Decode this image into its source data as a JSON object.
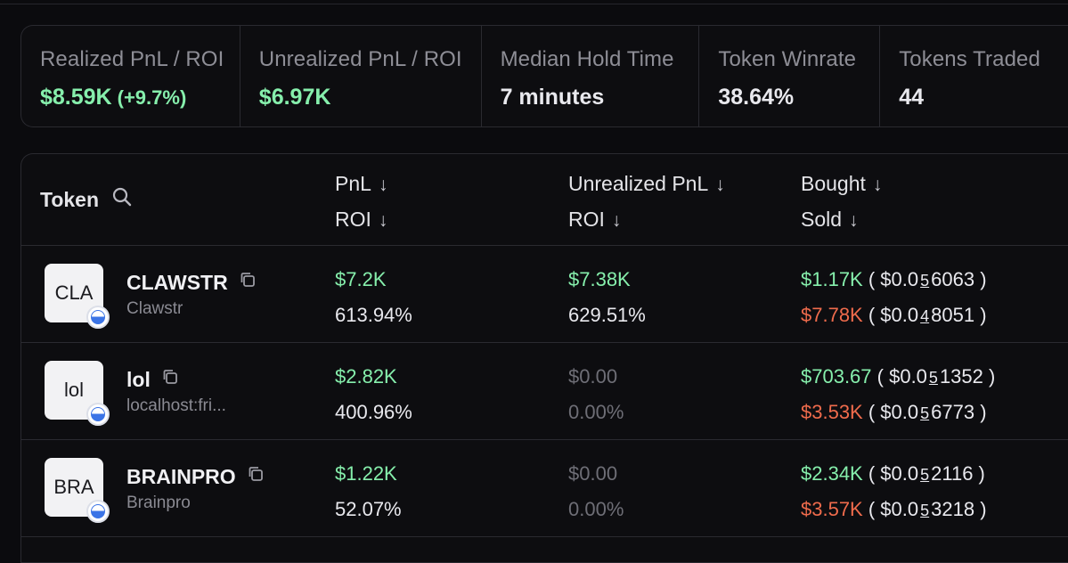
{
  "stats": [
    {
      "label": "Realized PnL / ROI",
      "value": "$8.59K",
      "roi": "(+9.7%)",
      "width": 246
    },
    {
      "label": "Unrealized PnL / ROI",
      "value": "$6.97K",
      "roi": "",
      "width": 271
    },
    {
      "label": "Median Hold Time",
      "value": "7 minutes",
      "roi": "",
      "width": 245
    },
    {
      "label": "Token Winrate",
      "value": "38.64%",
      "roi": "",
      "width": 203
    },
    {
      "label": "Tokens Traded",
      "value": "44",
      "roi": "",
      "width": 235
    }
  ],
  "table": {
    "headers": {
      "token": "Token",
      "pnl": "PnL",
      "roi": "ROI",
      "unrealized": "Unrealized PnL",
      "unrealized_roi": "ROI",
      "bought": "Bought",
      "sold": "Sold",
      "arrow": "↓"
    },
    "rows": [
      {
        "logo_text": "CLA",
        "symbol": "CLAWSTR",
        "name": "Clawstr",
        "pnl": "$7.2K",
        "roi": "613.94%",
        "unrealized_pnl": "$7.38K",
        "unrealized_roi": "629.51%",
        "unrealized_muted": false,
        "bought": "$1.17K",
        "bought_price_prefix": "( $0.0",
        "bought_price_zeros": "5",
        "bought_price_digits": "6063 )",
        "sold": "$7.78K",
        "sold_price_prefix": "( $0.0",
        "sold_price_zeros": "4",
        "sold_price_digits": "8051 )"
      },
      {
        "logo_text": "lol",
        "symbol": "lol",
        "name": "localhost:fri...",
        "pnl": "$2.82K",
        "roi": "400.96%",
        "unrealized_pnl": "$0.00",
        "unrealized_roi": "0.00%",
        "unrealized_muted": true,
        "bought": "$703.67",
        "bought_price_prefix": "( $0.0",
        "bought_price_zeros": "5",
        "bought_price_digits": "1352 )",
        "sold": "$3.53K",
        "sold_price_prefix": "( $0.0",
        "sold_price_zeros": "5",
        "sold_price_digits": "6773 )"
      },
      {
        "logo_text": "BRA",
        "symbol": "BRAINPRO",
        "name": "Brainpro",
        "pnl": "$1.22K",
        "roi": "52.07%",
        "unrealized_pnl": "$0.00",
        "unrealized_roi": "0.00%",
        "unrealized_muted": true,
        "bought": "$2.34K",
        "bought_price_prefix": "( $0.0",
        "bought_price_zeros": "5",
        "bought_price_digits": "2116 )",
        "sold": "$3.57K",
        "sold_price_prefix": "( $0.0",
        "sold_price_zeros": "5",
        "sold_price_digits": "3218 )"
      }
    ]
  },
  "icons": {
    "search": "search-icon",
    "copy": "copy-icon",
    "chain": "chain-badge-icon",
    "sort": "arrow-down-icon"
  },
  "colors": {
    "positive": "#86efac",
    "negative": "#ef6b4c",
    "muted": "#6e6e76",
    "background": "#0b0b0e",
    "border": "#2a2a30"
  }
}
